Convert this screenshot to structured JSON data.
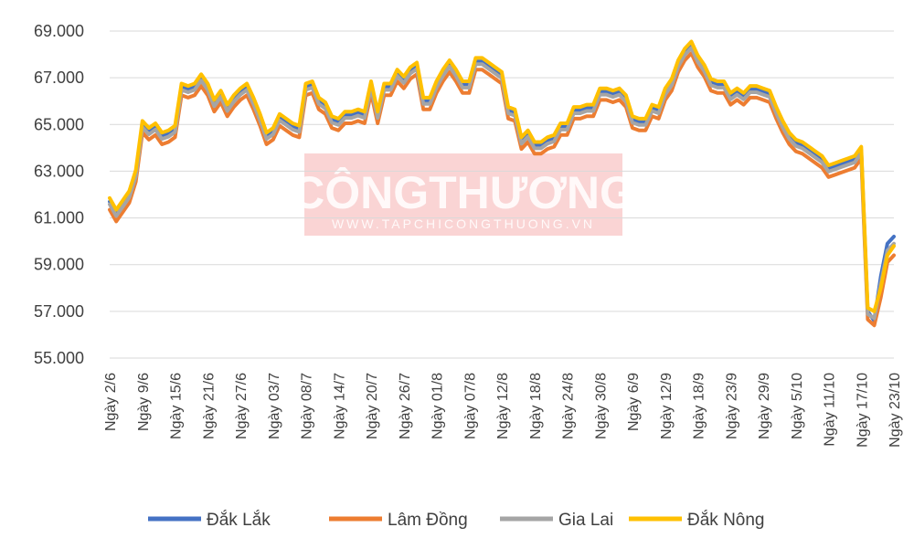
{
  "watermark": {
    "title": "CÔNGTHƯƠNG",
    "subtitle": "WWW.TAPCHICONGTHUONG.VN",
    "color": "#e63b3b"
  },
  "chart_data": {
    "type": "line",
    "title": "",
    "xlabel": "",
    "ylabel": "",
    "ylim": [
      55000,
      69000
    ],
    "yticks": [
      55000,
      57000,
      59000,
      61000,
      63000,
      65000,
      67000,
      69000
    ],
    "ytick_labels": [
      "55.000",
      "57.000",
      "59.000",
      "61.000",
      "63.000",
      "65.000",
      "67.000",
      "69.000"
    ],
    "grid": true,
    "legend_position": "bottom",
    "x_tick_labels": [
      "Ngày 2/6",
      "Ngày 9/6",
      "Ngày 15/6",
      "Ngày 21/6",
      "Ngày 27/6",
      "Ngày 03/7",
      "Ngày 08/7",
      "Ngày 14/7",
      "Ngày 20/7",
      "Ngày 26/7",
      "Ngày 01/8",
      "Ngày 07/8",
      "Ngày 12/8",
      "Ngày 18/8",
      "Ngày 24/8",
      "Ngày 30/8",
      "Ngày 6/9",
      "Ngày 12/9",
      "Ngày 18/9",
      "Ngày 23/9",
      "Ngày 29/9",
      "Ngày 5/10",
      "Ngày 11/10",
      "Ngày 17/10",
      "Ngày 23/10"
    ],
    "x_tick_indices": [
      0,
      5,
      10,
      15,
      20,
      25,
      30,
      35,
      40,
      45,
      50,
      55,
      60,
      65,
      70,
      75,
      80,
      85,
      90,
      95,
      100,
      105,
      110,
      115,
      120
    ],
    "base_series": [
      61700,
      61200,
      61600,
      62000,
      62900,
      65000,
      64700,
      64900,
      64500,
      64600,
      64800,
      66600,
      66500,
      66600,
      67000,
      66600,
      65900,
      66300,
      65700,
      66100,
      66400,
      66600,
      66000,
      65300,
      64500,
      64700,
      65300,
      65100,
      64900,
      64800,
      66600,
      66700,
      66000,
      65800,
      65200,
      65100,
      65400,
      65400,
      65500,
      65400,
      66700,
      65400,
      66600,
      66600,
      67200,
      66900,
      67300,
      67500,
      66000,
      66000,
      66700,
      67200,
      67600,
      67200,
      66700,
      66700,
      67700,
      67700,
      67500,
      67300,
      67100,
      65600,
      65500,
      64300,
      64600,
      64100,
      64100,
      64300,
      64400,
      64900,
      64900,
      65600,
      65600,
      65700,
      65700,
      66400,
      66400,
      66300,
      66400,
      66100,
      65200,
      65100,
      65100,
      65700,
      65600,
      66400,
      66800,
      67600,
      68100,
      68400,
      67800,
      67400,
      66800,
      66700,
      66700,
      66200,
      66400,
      66200,
      66500,
      66500,
      66400,
      66300,
      65600,
      65000,
      64500,
      64200,
      64100,
      63900,
      63700,
      63500,
      63100,
      63200,
      63300,
      63400,
      63500,
      63900,
      57000,
      58300,
      59400,
      59900,
      60100
    ],
    "series": [
      {
        "name": "Đắk Lắk",
        "color": "#4472c4",
        "offset": 0
      },
      {
        "name": "Lâm Đồng",
        "color": "#ed7d31",
        "offset": -350
      },
      {
        "name": "Gia Lai",
        "color": "#a5a5a5",
        "offset": -120
      },
      {
        "name": "Đắk Nông",
        "color": "#ffc000",
        "offset": 150
      }
    ],
    "series_tail_override": {
      "Đắk Lắk": [
        56600,
        58500,
        59900,
        60200
      ],
      "Lâm Đồng": [
        56400,
        57600,
        59100,
        59400
      ],
      "Gia Lai": [
        56700,
        58200,
        59600,
        59900
      ],
      "Đắk Nông": [
        57000,
        58000,
        59400,
        59800
      ]
    }
  }
}
